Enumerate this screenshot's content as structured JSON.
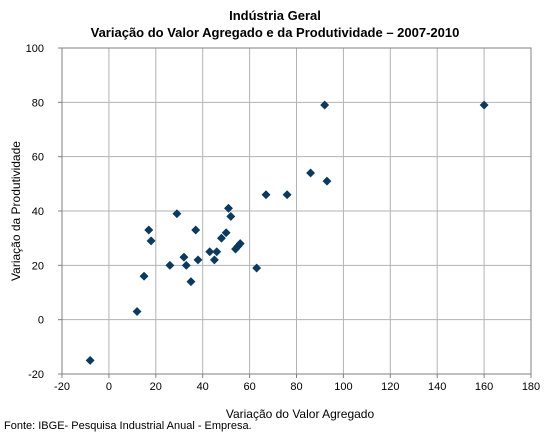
{
  "chart_data": {
    "type": "scatter",
    "title": "Indústria Geral",
    "subtitle": "Variação do Valor Agregado e da Produtividade – 2007-2010",
    "xlabel": "Variação do Valor Agregado",
    "ylabel": "Variação da Produtividade",
    "xlim": [
      -20,
      180
    ],
    "ylim": [
      -20,
      100
    ],
    "x_ticks": [
      -20,
      0,
      20,
      40,
      60,
      80,
      100,
      120,
      140,
      160,
      180
    ],
    "y_ticks": [
      -20,
      0,
      20,
      40,
      60,
      80,
      100
    ],
    "grid": true,
    "legend": "none",
    "marker": "diamond",
    "marker_color": "#0b3a5e",
    "grid_color": "#b3b3b3",
    "points": [
      {
        "x": -8,
        "y": -15
      },
      {
        "x": 12,
        "y": 3
      },
      {
        "x": 15,
        "y": 16
      },
      {
        "x": 17,
        "y": 33
      },
      {
        "x": 18,
        "y": 29
      },
      {
        "x": 26,
        "y": 20
      },
      {
        "x": 29,
        "y": 39
      },
      {
        "x": 32,
        "y": 23
      },
      {
        "x": 33,
        "y": 20
      },
      {
        "x": 35,
        "y": 14
      },
      {
        "x": 37,
        "y": 33
      },
      {
        "x": 38,
        "y": 22
      },
      {
        "x": 43,
        "y": 25
      },
      {
        "x": 45,
        "y": 22
      },
      {
        "x": 46,
        "y": 25
      },
      {
        "x": 48,
        "y": 30
      },
      {
        "x": 50,
        "y": 32
      },
      {
        "x": 51,
        "y": 41
      },
      {
        "x": 52,
        "y": 38
      },
      {
        "x": 54,
        "y": 26
      },
      {
        "x": 55,
        "y": 27
      },
      {
        "x": 56,
        "y": 28
      },
      {
        "x": 63,
        "y": 19
      },
      {
        "x": 67,
        "y": 46
      },
      {
        "x": 76,
        "y": 46
      },
      {
        "x": 86,
        "y": 54
      },
      {
        "x": 92,
        "y": 79
      },
      {
        "x": 93,
        "y": 51
      },
      {
        "x": 160,
        "y": 79
      }
    ]
  },
  "source": "Fonte: IBGE- Pesquisa Industrial Anual - Empresa."
}
